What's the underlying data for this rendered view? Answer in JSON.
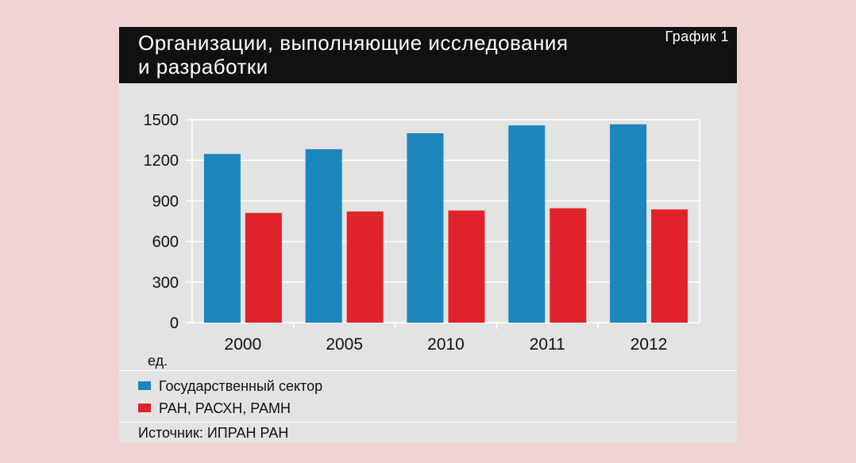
{
  "header": {
    "title": "Организации, выполняющие исследования и разработки",
    "chart_label": "График 1"
  },
  "unit_label": "ед.",
  "legend": [
    {
      "label": "Государственный сектор",
      "color": "#1b86bb"
    },
    {
      "label": "РАН, РАСХН, РАМН",
      "color": "#e0232a"
    }
  ],
  "source": "Источник: ИПРАН РАН",
  "chart_data": {
    "type": "bar",
    "title": "Организации, выполняющие исследования и разработки",
    "xlabel": "",
    "ylabel": "ед.",
    "categories": [
      "2000",
      "2005",
      "2010",
      "2011",
      "2012"
    ],
    "ylim": [
      0,
      1500
    ],
    "yticks": [
      0,
      300,
      600,
      900,
      1200,
      1500
    ],
    "grid": true,
    "legend_position": "bottom",
    "series": [
      {
        "name": "Государственный сектор",
        "color": "#1b86bb",
        "values": [
          1247,
          1282,
          1400,
          1458,
          1466
        ]
      },
      {
        "name": "РАН, РАСХН, РАМН",
        "color": "#e0232a",
        "values": [
          811,
          822,
          829,
          846,
          837
        ]
      }
    ]
  }
}
